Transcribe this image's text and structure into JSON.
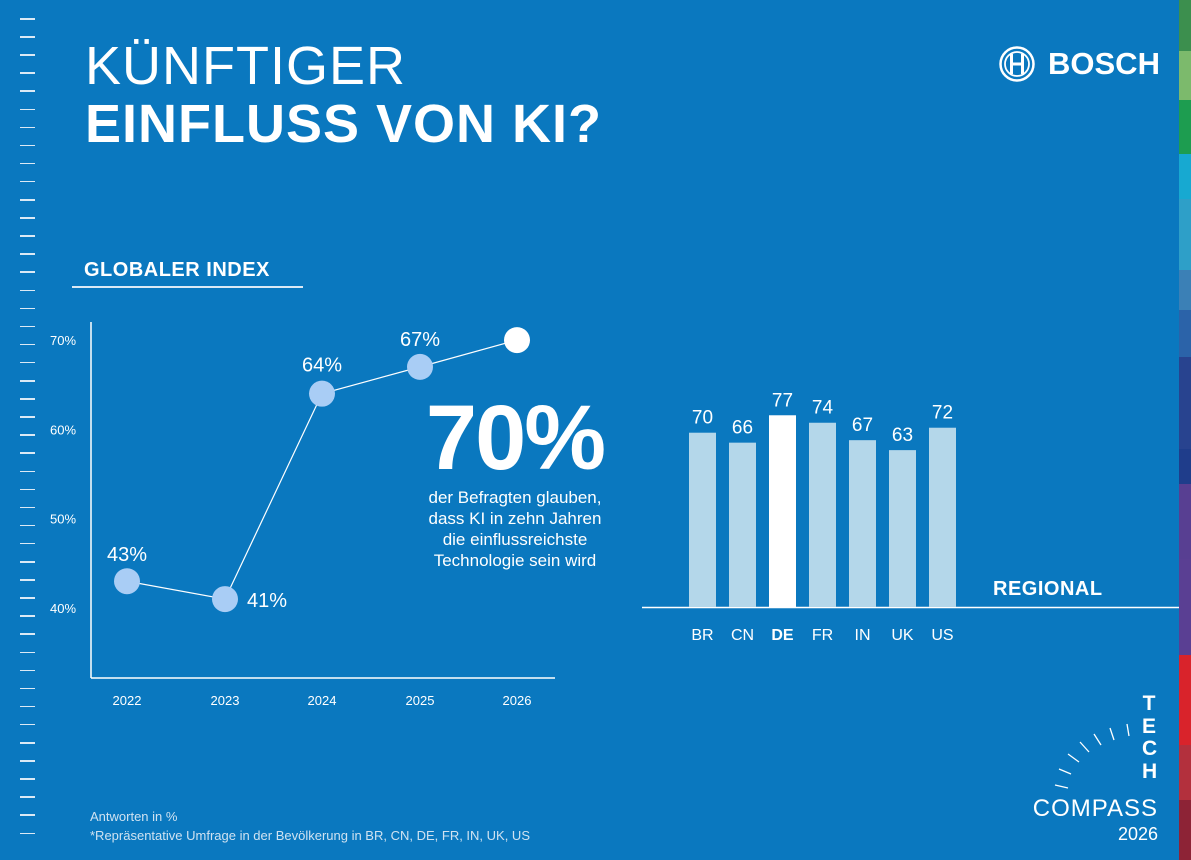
{
  "header": {
    "title_line1": "KÜNFTIGER",
    "title_line2": "EINFLUSS VON KI?",
    "brand": "BOSCH"
  },
  "colors": {
    "background": "#0a78bf",
    "point": "#a9cdf5",
    "point_highlight": "#ffffff",
    "bar": "#b4d7ea",
    "bar_highlight": "#ffffff"
  },
  "highlight": {
    "value": "70%",
    "text_lines": [
      "der Befragten glauben,",
      "dass KI in zehn Jahren",
      "die einflussreichste",
      "Technologie sein wird"
    ]
  },
  "footer": {
    "note1": "Antworten in %",
    "note2": "*Repräsentative Umfrage in der Bevölkerung in BR, CN, DE, FR, IN, UK, US"
  },
  "logo": {
    "tech": "TECH",
    "compass": "COMPASS",
    "year": "2026"
  },
  "chart_data": [
    {
      "type": "line",
      "title": "GLOBALER INDEX",
      "x": [
        "2022",
        "2023",
        "2024",
        "2025",
        "2026"
      ],
      "values": [
        43,
        41,
        64,
        67,
        70
      ],
      "data_labels": [
        "43%",
        "41%",
        "64%",
        "67%",
        ""
      ],
      "yticks": [
        "40%",
        "50%",
        "60%",
        "70%"
      ],
      "ylim": [
        36,
        73
      ],
      "highlight_point": "2026",
      "grid": false
    },
    {
      "type": "bar",
      "title": "REGIONAL",
      "categories": [
        "BR",
        "CN",
        "DE",
        "FR",
        "IN",
        "UK",
        "US"
      ],
      "values": [
        70,
        66,
        77,
        74,
        67,
        63,
        72
      ],
      "ylim": [
        0,
        100
      ],
      "highlight_category": "DE",
      "grid": false
    }
  ]
}
